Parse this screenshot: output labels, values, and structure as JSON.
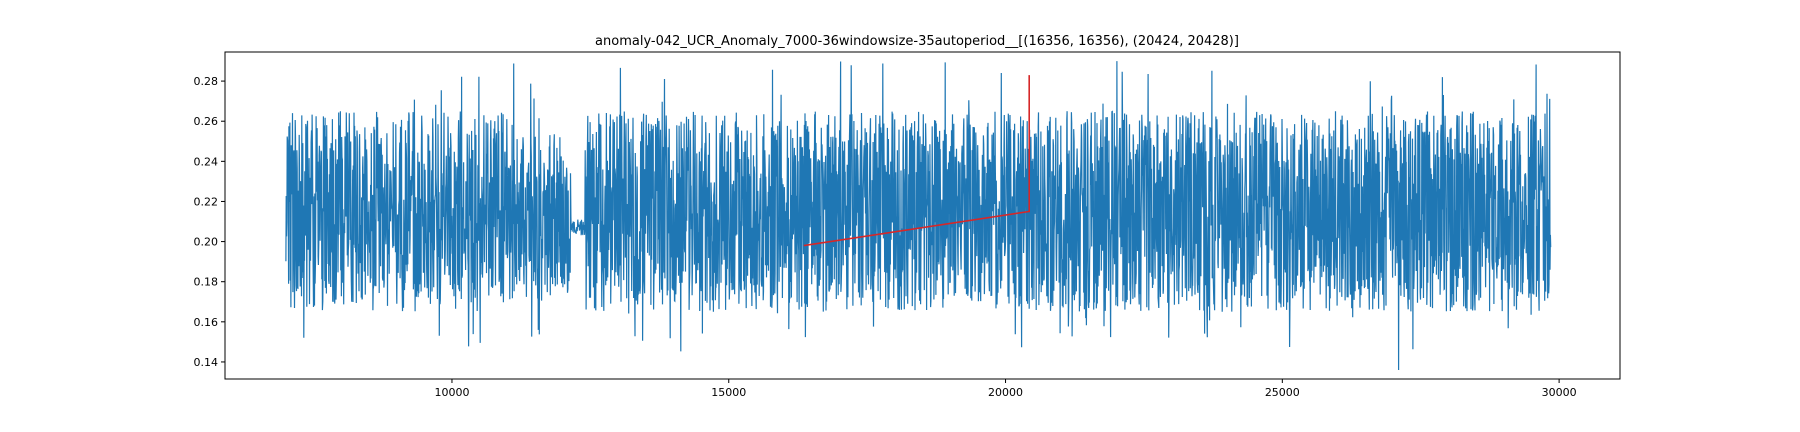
{
  "chart_data": {
    "type": "line",
    "title": "anomaly-042_UCR_Anomaly_7000-36windowsize-35autoperiod__[(16356, 16356), (20424, 20428)]",
    "xlabel": "",
    "ylabel": "",
    "xlim": [
      5900,
      31100
    ],
    "ylim": [
      0.1315,
      0.2945
    ],
    "x_ticks": [
      10000,
      15000,
      20000,
      25000,
      30000
    ],
    "x_tick_labels": [
      "10000",
      "15000",
      "20000",
      "25000",
      "30000"
    ],
    "y_ticks": [
      0.14,
      0.16,
      0.18,
      0.2,
      0.22,
      0.24,
      0.26,
      0.28
    ],
    "y_tick_labels": [
      "0.14",
      "0.16",
      "0.18",
      "0.20",
      "0.22",
      "0.24",
      "0.26",
      "0.28"
    ],
    "grid": false,
    "legend": "none",
    "series": [
      {
        "color": "#1f77b4",
        "x_range": [
          7000,
          29850
        ],
        "description_values": {
          "typical_low": 0.165,
          "typical_high": 0.265,
          "min": 0.136,
          "max": 0.29,
          "min_at_x": 27100,
          "gap_x": [
            12150,
            12400
          ],
          "gap_level": 0.207
        }
      },
      {
        "color": "#d62728",
        "x": [
          16356,
          20424,
          20428,
          20428
        ],
        "values": [
          0.198,
          0.215,
          0.215,
          0.283
        ]
      }
    ]
  }
}
